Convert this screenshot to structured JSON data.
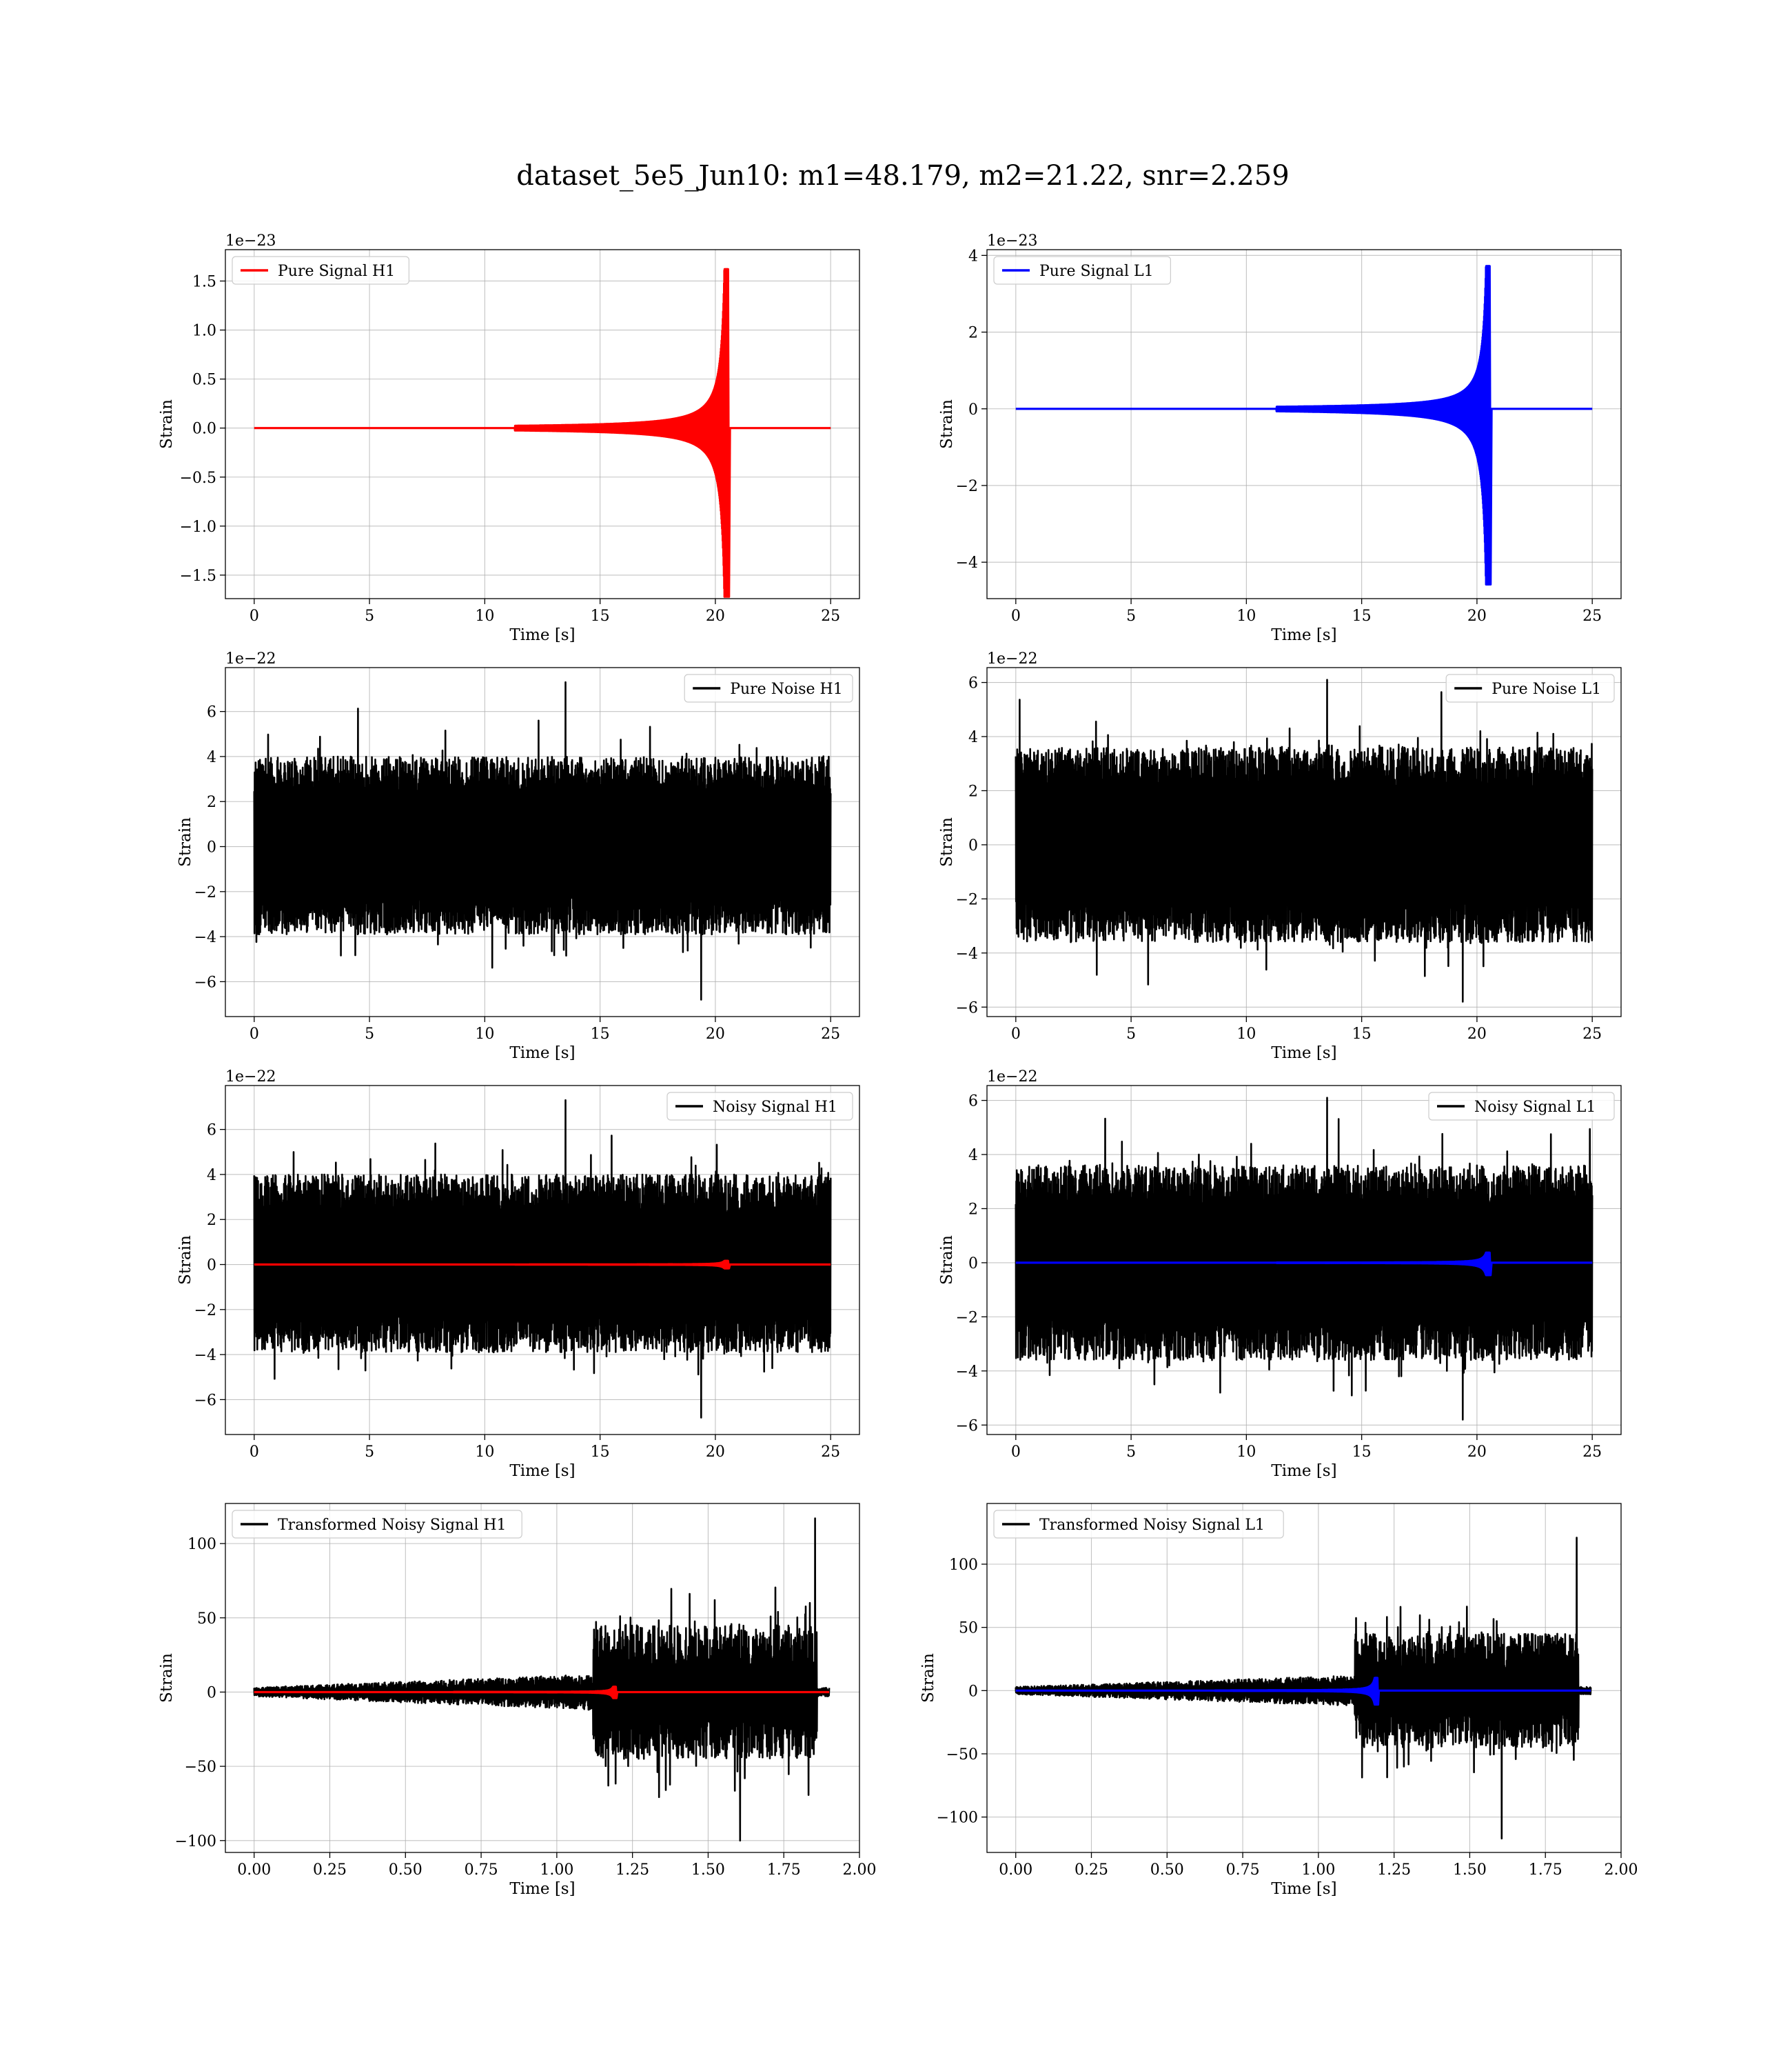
{
  "figure_title": "dataset_5e5_Jun10: m1=48.179, m2=21.22, snr=2.259",
  "chart_data": [
    {
      "id": "pure-signal-h1",
      "type": "line",
      "row": 0,
      "col": 0,
      "xlabel": "Time [s]",
      "ylabel": "Strain",
      "offset_text": "1e−23",
      "xlim": [
        -1.25,
        26.25
      ],
      "ylim": [
        -1.74,
        1.82
      ],
      "xticks": [
        0,
        5,
        10,
        15,
        20,
        25
      ],
      "xtick_labels": [
        "0",
        "5",
        "10",
        "15",
        "20",
        "25"
      ],
      "yticks": [
        -1.5,
        -1.0,
        -0.5,
        0.0,
        0.5,
        1.0,
        1.5
      ],
      "ytick_labels": [
        "−1.5",
        "−1.0",
        "−0.5",
        "0.0",
        "0.5",
        "1.0",
        "1.5"
      ],
      "grid": true,
      "legend_loc": "upper left",
      "series": [
        {
          "name": "Pure Signal H1",
          "color": "#ff0000",
          "kind": "chirp",
          "x_start": 0,
          "x_end": 25,
          "merger_time": 20.55,
          "amplitude_peak": 1.62,
          "amplitude_min": -1.72
        }
      ]
    },
    {
      "id": "pure-signal-l1",
      "type": "line",
      "row": 0,
      "col": 1,
      "xlabel": "Time [s]",
      "ylabel": "Strain",
      "offset_text": "1e−23",
      "xlim": [
        -1.25,
        26.25
      ],
      "ylim": [
        -4.95,
        4.15
      ],
      "xticks": [
        0,
        5,
        10,
        15,
        20,
        25
      ],
      "xtick_labels": [
        "0",
        "5",
        "10",
        "15",
        "20",
        "25"
      ],
      "yticks": [
        -4,
        -2,
        0,
        2,
        4
      ],
      "ytick_labels": [
        "−4",
        "−2",
        "0",
        "2",
        "4"
      ],
      "grid": true,
      "legend_loc": "upper left",
      "series": [
        {
          "name": "Pure Signal L1",
          "color": "#0000ff",
          "kind": "chirp",
          "x_start": 0,
          "x_end": 25,
          "merger_time": 20.55,
          "amplitude_peak": 3.72,
          "amplitude_min": -4.58
        }
      ]
    },
    {
      "id": "pure-noise-h1",
      "type": "line",
      "row": 1,
      "col": 0,
      "xlabel": "Time [s]",
      "ylabel": "Strain",
      "offset_text": "1e−22",
      "xlim": [
        -1.25,
        26.25
      ],
      "ylim": [
        -7.55,
        7.95
      ],
      "xticks": [
        0,
        5,
        10,
        15,
        20,
        25
      ],
      "xtick_labels": [
        "0",
        "5",
        "10",
        "15",
        "20",
        "25"
      ],
      "yticks": [
        -6,
        -4,
        -2,
        0,
        2,
        4,
        6
      ],
      "ytick_labels": [
        "−6",
        "−4",
        "−2",
        "0",
        "2",
        "4",
        "6"
      ],
      "grid": true,
      "legend_loc": "upper right",
      "series": [
        {
          "name": "Pure Noise H1",
          "color": "#000000",
          "kind": "noise",
          "x_start": 0,
          "x_end": 25,
          "band_high": 4.0,
          "band_low": -3.9,
          "max": 7.3,
          "min": -6.8
        }
      ]
    },
    {
      "id": "pure-noise-l1",
      "type": "line",
      "row": 1,
      "col": 1,
      "xlabel": "Time [s]",
      "ylabel": "Strain",
      "offset_text": "1e−22",
      "xlim": [
        -1.25,
        26.25
      ],
      "ylim": [
        -6.35,
        6.55
      ],
      "xticks": [
        0,
        5,
        10,
        15,
        20,
        25
      ],
      "xtick_labels": [
        "0",
        "5",
        "10",
        "15",
        "20",
        "25"
      ],
      "yticks": [
        -6,
        -4,
        -2,
        0,
        2,
        4,
        6
      ],
      "ytick_labels": [
        "−6",
        "−4",
        "−2",
        "0",
        "2",
        "4",
        "6"
      ],
      "grid": true,
      "legend_loc": "upper right",
      "series": [
        {
          "name": "Pure Noise L1",
          "color": "#000000",
          "kind": "noise",
          "x_start": 0,
          "x_end": 25,
          "band_high": 3.6,
          "band_low": -3.6,
          "max": 6.1,
          "min": -5.8
        }
      ]
    },
    {
      "id": "noisy-signal-h1",
      "type": "line",
      "row": 2,
      "col": 0,
      "xlabel": "Time [s]",
      "ylabel": "Strain",
      "offset_text": "1e−22",
      "xlim": [
        -1.25,
        26.25
      ],
      "ylim": [
        -7.55,
        7.95
      ],
      "xticks": [
        0,
        5,
        10,
        15,
        20,
        25
      ],
      "xtick_labels": [
        "0",
        "5",
        "10",
        "15",
        "20",
        "25"
      ],
      "yticks": [
        -6,
        -4,
        -2,
        0,
        2,
        4,
        6
      ],
      "ytick_labels": [
        "−6",
        "−4",
        "−2",
        "0",
        "2",
        "4",
        "6"
      ],
      "grid": true,
      "legend_loc": "upper right",
      "series": [
        {
          "name": "Noisy Signal H1",
          "color": "#000000",
          "kind": "noise",
          "x_start": 0,
          "x_end": 25,
          "band_high": 4.0,
          "band_low": -3.9,
          "max": 7.3,
          "min": -6.8
        },
        {
          "name": "",
          "color": "#ff0000",
          "kind": "chirp",
          "x_start": 0,
          "x_end": 25,
          "merger_time": 20.55,
          "amplitude_peak": 0.162,
          "amplitude_min": -0.172
        }
      ]
    },
    {
      "id": "noisy-signal-l1",
      "type": "line",
      "row": 2,
      "col": 1,
      "xlabel": "Time [s]",
      "ylabel": "Strain",
      "offset_text": "1e−22",
      "xlim": [
        -1.25,
        26.25
      ],
      "ylim": [
        -6.35,
        6.55
      ],
      "xticks": [
        0,
        5,
        10,
        15,
        20,
        25
      ],
      "xtick_labels": [
        "0",
        "5",
        "10",
        "15",
        "20",
        "25"
      ],
      "yticks": [
        -6,
        -4,
        -2,
        0,
        2,
        4,
        6
      ],
      "ytick_labels": [
        "−6",
        "−4",
        "−2",
        "0",
        "2",
        "4",
        "6"
      ],
      "grid": true,
      "legend_loc": "upper right",
      "series": [
        {
          "name": "Noisy Signal L1",
          "color": "#000000",
          "kind": "noise",
          "x_start": 0,
          "x_end": 25,
          "band_high": 3.6,
          "band_low": -3.6,
          "max": 6.1,
          "min": -5.8
        },
        {
          "name": "",
          "color": "#0000ff",
          "kind": "chirp",
          "x_start": 0,
          "x_end": 25,
          "merger_time": 20.55,
          "amplitude_peak": 0.372,
          "amplitude_min": -0.458
        }
      ]
    },
    {
      "id": "transformed-noisy-signal-h1",
      "type": "line",
      "row": 3,
      "col": 0,
      "xlabel": "Time [s]",
      "ylabel": "Strain",
      "offset_text": "",
      "xlim": [
        -0.095,
        2.0
      ],
      "ylim": [
        -108,
        127
      ],
      "xticks": [
        0.0,
        0.25,
        0.5,
        0.75,
        1.0,
        1.25,
        1.5,
        1.75,
        2.0
      ],
      "xtick_labels": [
        "0.00",
        "0.25",
        "0.50",
        "0.75",
        "1.00",
        "1.25",
        "1.50",
        "1.75",
        "2.00"
      ],
      "yticks": [
        -100,
        -50,
        0,
        50,
        100
      ],
      "ytick_labels": [
        "−100",
        "−50",
        "0",
        "50",
        "100"
      ],
      "grid": true,
      "legend_loc": "upper left",
      "series": [
        {
          "name": "Transformed Noisy Signal H1",
          "color": "#000000",
          "kind": "whitened",
          "x_start": 0,
          "x_end": 1.9,
          "step_time": 1.12,
          "drop_time": 1.86,
          "max": 117,
          "min": -100
        },
        {
          "name": "",
          "color": "#ff0000",
          "kind": "chirp",
          "x_start": 0,
          "x_end": 1.9,
          "merger_time": 1.195,
          "amplitude_peak": 3.5,
          "amplitude_min": -4.0
        }
      ]
    },
    {
      "id": "transformed-noisy-signal-l1",
      "type": "line",
      "row": 3,
      "col": 1,
      "xlabel": "Time [s]",
      "ylabel": "Strain",
      "offset_text": "",
      "xlim": [
        -0.095,
        2.0
      ],
      "ylim": [
        -128,
        148
      ],
      "xticks": [
        0.0,
        0.25,
        0.5,
        0.75,
        1.0,
        1.25,
        1.5,
        1.75,
        2.0
      ],
      "xtick_labels": [
        "0.00",
        "0.25",
        "0.50",
        "0.75",
        "1.00",
        "1.25",
        "1.50",
        "1.75",
        "2.00"
      ],
      "yticks": [
        -100,
        -50,
        0,
        50,
        100
      ],
      "ytick_labels": [
        "−100",
        "−50",
        "0",
        "50",
        "100"
      ],
      "grid": true,
      "legend_loc": "upper left",
      "series": [
        {
          "name": "Transformed Noisy Signal L1",
          "color": "#000000",
          "kind": "whitened",
          "x_start": 0,
          "x_end": 1.9,
          "step_time": 1.12,
          "drop_time": 1.86,
          "max": 121,
          "min": -117
        },
        {
          "name": "",
          "color": "#0000ff",
          "kind": "chirp",
          "x_start": 0,
          "x_end": 1.9,
          "merger_time": 1.195,
          "amplitude_peak": 10,
          "amplitude_min": -11
        }
      ]
    }
  ]
}
